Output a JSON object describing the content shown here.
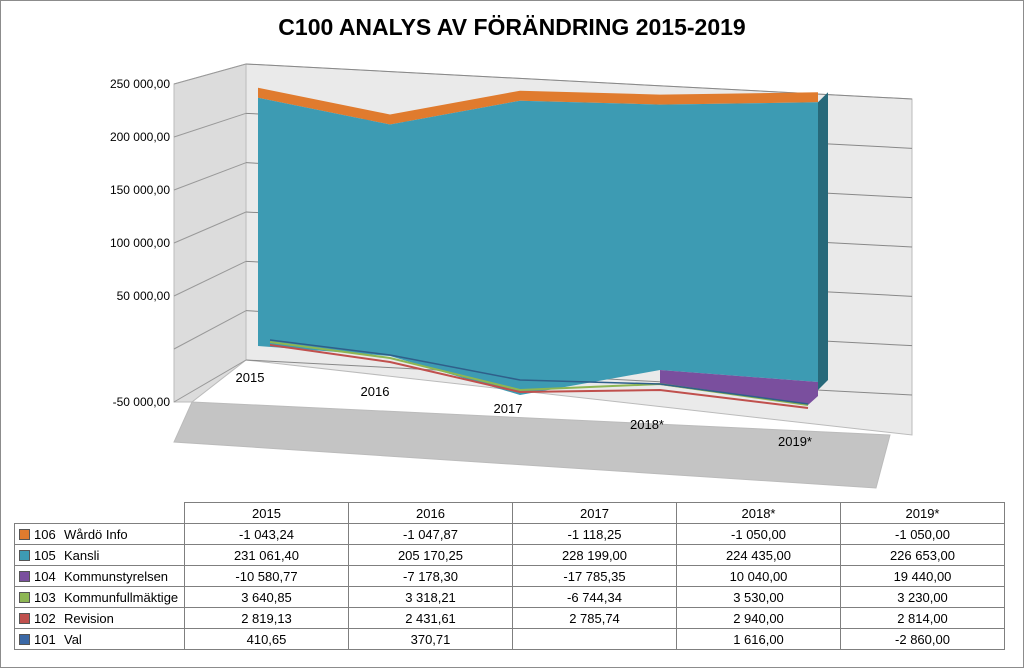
{
  "chart_data": {
    "type": "area",
    "title": "C100 ANALYS AV FÖRÄNDRING 2015-2019",
    "categories": [
      "2015",
      "2016",
      "2017",
      "2018*",
      "2019*"
    ],
    "y_ticks": [
      "250 000,00",
      "200 000,00",
      "150 000,00",
      "100 000,00",
      "50 000,00",
      "-50 000,00"
    ],
    "ylim": [
      -50000,
      250000
    ],
    "series": [
      {
        "code": "106",
        "name": "Wårdö Info",
        "color": "#e07b2e",
        "values": [
          -1043.24,
          -1047.87,
          -1118.25,
          -1050.0,
          -1050.0
        ],
        "labels": [
          "-1 043,24",
          "-1 047,87",
          "-1 118,25",
          "-1 050,00",
          "-1 050,00"
        ]
      },
      {
        "code": "105",
        "name": "Kansli",
        "color": "#3d9bb3",
        "values": [
          231061.4,
          205170.25,
          228199.0,
          224435.0,
          226653.0
        ],
        "labels": [
          "231 061,40",
          "205 170,25",
          "228 199,00",
          "224 435,00",
          "226 653,00"
        ]
      },
      {
        "code": "104",
        "name": "Kommunstyrelsen",
        "color": "#7a4f9e",
        "values": [
          -10580.77,
          -7178.3,
          -17785.35,
          10040.0,
          19440.0
        ],
        "labels": [
          "-10 580,77",
          "-7 178,30",
          "-17 785,35",
          "10 040,00",
          "19 440,00"
        ]
      },
      {
        "code": "103",
        "name": "Kommunfullmäktige",
        "color": "#8db653",
        "values": [
          3640.85,
          3318.21,
          -6744.34,
          3530.0,
          3230.0
        ],
        "labels": [
          "3 640,85",
          "3 318,21",
          "-6 744,34",
          "3 530,00",
          "3 230,00"
        ]
      },
      {
        "code": "102",
        "name": "Revision",
        "color": "#c0504d",
        "values": [
          2819.13,
          2431.61,
          2785.74,
          2940.0,
          2814.0
        ],
        "labels": [
          "2 819,13",
          "2 431,61",
          "2 785,74",
          "2 940,00",
          "2 814,00"
        ]
      },
      {
        "code": "101",
        "name": "Val",
        "color": "#3a68a6",
        "values": [
          410.65,
          370.71,
          null,
          1616.0,
          -2860.0
        ],
        "labels": [
          "410,65",
          "370,71",
          "",
          "1 616,00",
          "-2 860,00"
        ]
      }
    ]
  }
}
